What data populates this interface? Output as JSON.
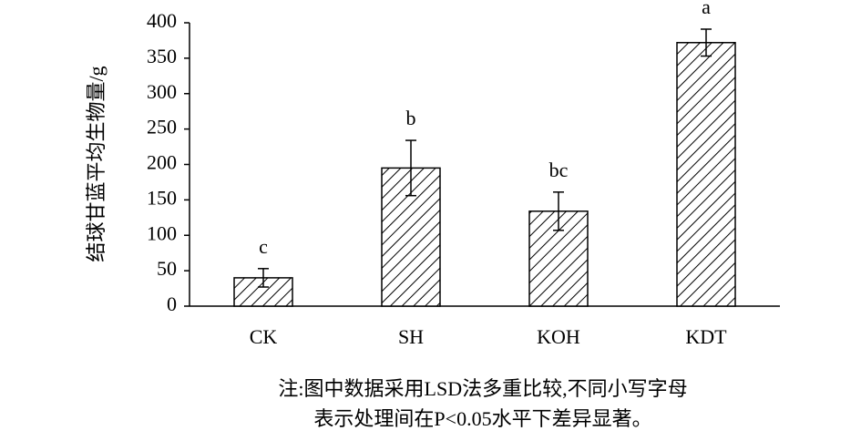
{
  "chart_data": {
    "type": "bar",
    "y_label": "结球甘蓝平均生物量/g",
    "categories": [
      "CK",
      "SH",
      "KOH",
      "KDT"
    ],
    "values": [
      40,
      195,
      134,
      372
    ],
    "errors": [
      13,
      39,
      27,
      19
    ],
    "letters": [
      "c",
      "b",
      "bc",
      "a"
    ],
    "ylim": [
      0,
      400
    ],
    "yticks": [
      0,
      50,
      100,
      150,
      200,
      250,
      300,
      350,
      400
    ],
    "note": [
      "注:图中数据采用LSD法多重比较,不同小写字母",
      "表示处理间在P<0.05水平下差异显著。"
    ]
  }
}
